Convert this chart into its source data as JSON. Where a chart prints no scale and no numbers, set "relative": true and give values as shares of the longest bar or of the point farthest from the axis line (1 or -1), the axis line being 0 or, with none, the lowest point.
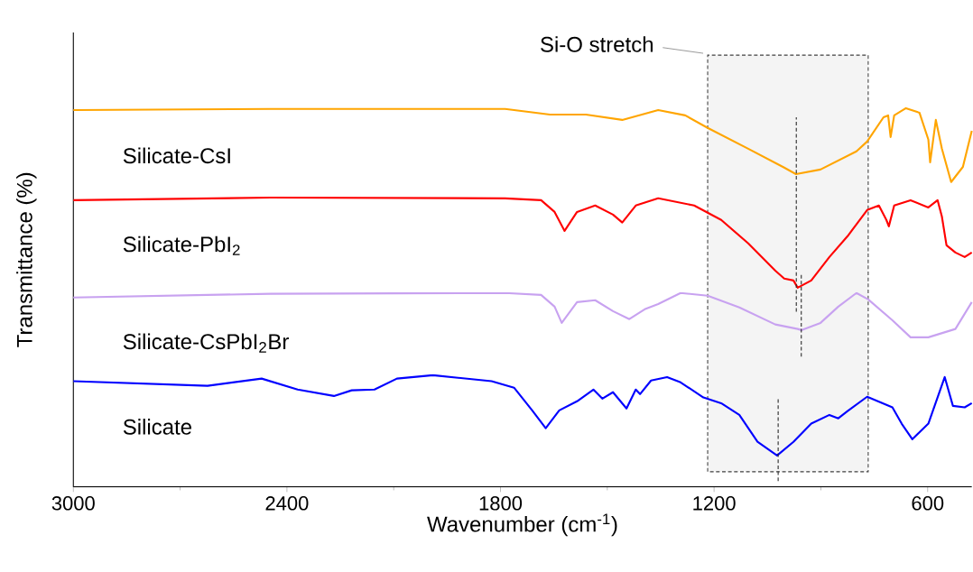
{
  "chart_data": {
    "type": "line",
    "relative": true,
    "xlabel": "Wavenumber (cm$^{-1}$)",
    "ylabel": "Transmittance (%)",
    "xlim": [
      3000,
      476
    ],
    "xticks": [
      3000,
      2400,
      1800,
      1200,
      600
    ],
    "series": [
      {
        "name": "Silicate-CsI",
        "color": "#ffa500",
        "x": [
          3000,
          2446,
          1787,
          1661,
          1560,
          1458,
          1357,
          1281,
          1218,
          1104,
          1003,
          970,
          901,
          800,
          770,
          724,
          711,
          704,
          694,
          661,
          623,
          598,
          593,
          577,
          560,
          534,
          501,
          476
        ],
        "values": [
          0.995,
          0.998,
          0.998,
          0.983,
          0.983,
          0.969,
          0.995,
          0.981,
          0.948,
          0.893,
          0.843,
          0.826,
          0.838,
          0.886,
          0.912,
          0.976,
          0.981,
          0.924,
          0.981,
          1.0,
          0.988,
          0.917,
          0.857,
          0.969,
          0.893,
          0.805,
          0.845,
          0.94
        ]
      },
      {
        "name": "Silicate-PbI$_{2}$",
        "color": "#ff0000",
        "x": [
          3000,
          2446,
          1787,
          1686,
          1648,
          1620,
          1585,
          1534,
          1484,
          1458,
          1420,
          1357,
          1256,
          1218,
          1180,
          1104,
          1028,
          1003,
          977,
          965,
          927,
          876,
          825,
          770,
          737,
          716,
          709,
          694,
          648,
          598,
          572,
          560,
          547,
          522,
          496,
          476
        ],
        "values": [
          0.757,
          0.764,
          0.762,
          0.757,
          0.726,
          0.676,
          0.726,
          0.743,
          0.719,
          0.698,
          0.743,
          0.762,
          0.743,
          0.724,
          0.705,
          0.643,
          0.571,
          0.55,
          0.545,
          0.526,
          0.545,
          0.607,
          0.662,
          0.731,
          0.743,
          0.705,
          0.688,
          0.743,
          0.757,
          0.738,
          0.757,
          0.714,
          0.638,
          0.619,
          0.607,
          0.619
        ]
      },
      {
        "name": "Silicate-CsPbI$_{2}$Br",
        "color": "#c8a2f0",
        "x": [
          3000,
          2446,
          1787,
          1686,
          1648,
          1628,
          1585,
          1534,
          1484,
          1438,
          1395,
          1357,
          1294,
          1218,
          1129,
          1028,
          965,
          955,
          901,
          851,
          800,
          767,
          699,
          648,
          598,
          522,
          476
        ],
        "values": [
          0.5,
          0.51,
          0.512,
          0.507,
          0.476,
          0.433,
          0.488,
          0.493,
          0.464,
          0.443,
          0.469,
          0.483,
          0.512,
          0.505,
          0.474,
          0.429,
          0.417,
          0.414,
          0.433,
          0.476,
          0.512,
          0.495,
          0.44,
          0.395,
          0.395,
          0.417,
          0.488
        ]
      },
      {
        "name": "Silicate",
        "color": "#0000ff",
        "x": [
          3000,
          2623,
          2471,
          2370,
          2268,
          2218,
          2154,
          2091,
          1990,
          1825,
          1762,
          1711,
          1673,
          1635,
          1585,
          1539,
          1514,
          1484,
          1446,
          1420,
          1408,
          1377,
          1332,
          1294,
          1230,
          1180,
          1129,
          1078,
          1023,
          977,
          927,
          876,
          851,
          825,
          770,
          699,
          673,
          643,
          598,
          552,
          529,
          496,
          476
        ],
        "values": [
          0.279,
          0.267,
          0.286,
          0.257,
          0.24,
          0.255,
          0.257,
          0.286,
          0.295,
          0.279,
          0.262,
          0.202,
          0.155,
          0.202,
          0.226,
          0.257,
          0.233,
          0.25,
          0.207,
          0.257,
          0.245,
          0.281,
          0.29,
          0.276,
          0.236,
          0.221,
          0.19,
          0.119,
          0.083,
          0.119,
          0.167,
          0.19,
          0.181,
          0.2,
          0.238,
          0.21,
          0.167,
          0.126,
          0.167,
          0.29,
          0.214,
          0.21,
          0.221
        ]
      }
    ],
    "bands": [
      {
        "axis": "x",
        "from": 1218,
        "to": 767,
        "label": "Si-O stretch",
        "color": "#f4f4f4"
      }
    ],
    "ref_lines": [
      {
        "axis": "x",
        "value": 969,
        "line_style": "dashed"
      },
      {
        "axis": "x",
        "value": 955,
        "line_style": "dashed"
      },
      {
        "axis": "x",
        "value": 1020,
        "line_style": "dashed"
      }
    ]
  }
}
